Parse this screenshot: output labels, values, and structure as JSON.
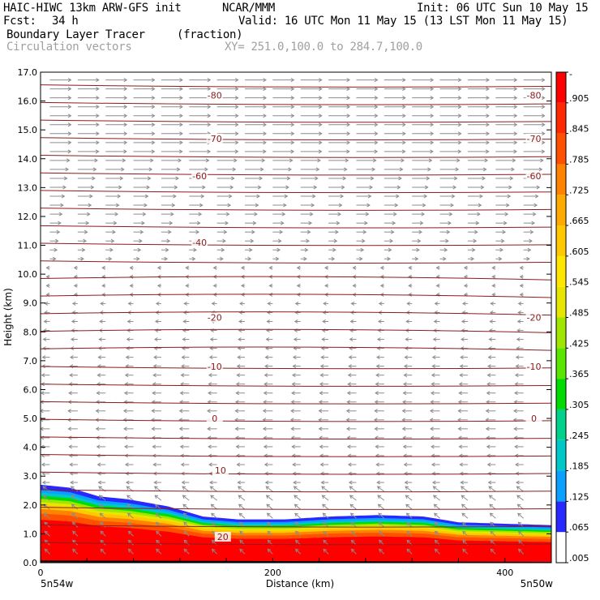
{
  "header": {
    "model": "HAIC-HIWC 13km ARW-GFS init",
    "org": "NCAR/MMM",
    "init": "Init: 06 UTC Sun 10 May 15",
    "fcst_label": "Fcst:",
    "fcst_value": "34 h",
    "valid": "Valid: 16 UTC Mon 11 May 15 (13 LST Mon 11 May 15)",
    "field": "Boundary Layer Tracer",
    "units": "(fraction)",
    "field2": "Circulation vectors",
    "xy": "XY= 251.0,100.0 to 284.7,100.0"
  },
  "chart_data": {
    "type": "heatmap",
    "ylabel": "Height (km)",
    "xlabel": "Distance (km)",
    "x_range": [
      0,
      440
    ],
    "y_range": [
      0,
      17
    ],
    "y_ticks": [
      "0.0",
      "1.0",
      "2.0",
      "3.0",
      "4.0",
      "5.0",
      "6.0",
      "7.0",
      "8.0",
      "9.0",
      "10.0",
      "11.0",
      "12.0",
      "13.0",
      "14.0",
      "15.0",
      "16.0",
      "17.0"
    ],
    "x_ticks": [
      "0",
      "200",
      "400"
    ],
    "x_tick_values": [
      0,
      200,
      400
    ],
    "left_endpoint": "5n54w",
    "right_endpoint": "5n50w",
    "colorbar_labels": [
      ".005",
      ".065",
      ".125",
      ".185",
      ".245",
      ".305",
      ".365",
      ".425",
      ".485",
      ".545",
      ".605",
      ".665",
      ".725",
      ".785",
      ".845",
      ".905",
      "-"
    ],
    "colorbar_colors": [
      "#ffffff",
      "#2828ff",
      "#0aa0ff",
      "#00c8c8",
      "#00d28c",
      "#00dc00",
      "#5ae600",
      "#a0e600",
      "#e6e600",
      "#ffe600",
      "#ffc800",
      "#ffaa00",
      "#ff8200",
      "#ff5000",
      "#ff2800",
      "#ff0000"
    ],
    "isotherm_labels": [
      {
        "value": "-80",
        "x": [
          75,
          430
        ],
        "y": 16.2
      },
      {
        "value": "-70",
        "x": [
          75,
          430
        ],
        "y": 14.7
      },
      {
        "value": "-60",
        "x": [
          62,
          430
        ],
        "y": 13.4
      },
      {
        "value": "-40",
        "x": [
          62,
          0
        ],
        "y": 11.1
      },
      {
        "value": "-20",
        "x": [
          75,
          430
        ],
        "y": 8.5
      },
      {
        "value": "-10",
        "x": [
          75,
          430
        ],
        "y": 6.8
      },
      {
        "value": "0",
        "x": [
          75,
          430
        ],
        "y": 5.0
      },
      {
        "value": "10",
        "x": [
          80,
          0
        ],
        "y": 3.2
      },
      {
        "value": "20",
        "x": [
          82,
          0
        ],
        "y": 0.9
      }
    ],
    "boundary_layer_top_km": [
      [
        0,
        2.7
      ],
      [
        25,
        2.6
      ],
      [
        50,
        2.3
      ],
      [
        75,
        2.2
      ],
      [
        110,
        1.95
      ],
      [
        140,
        1.6
      ],
      [
        170,
        1.5
      ],
      [
        210,
        1.5
      ],
      [
        250,
        1.6
      ],
      [
        290,
        1.65
      ],
      [
        330,
        1.6
      ],
      [
        360,
        1.4
      ],
      [
        400,
        1.35
      ],
      [
        440,
        1.3
      ]
    ],
    "colors": {
      "isotherm": "#8b1c1c",
      "vector": "#8c8c8c"
    }
  }
}
